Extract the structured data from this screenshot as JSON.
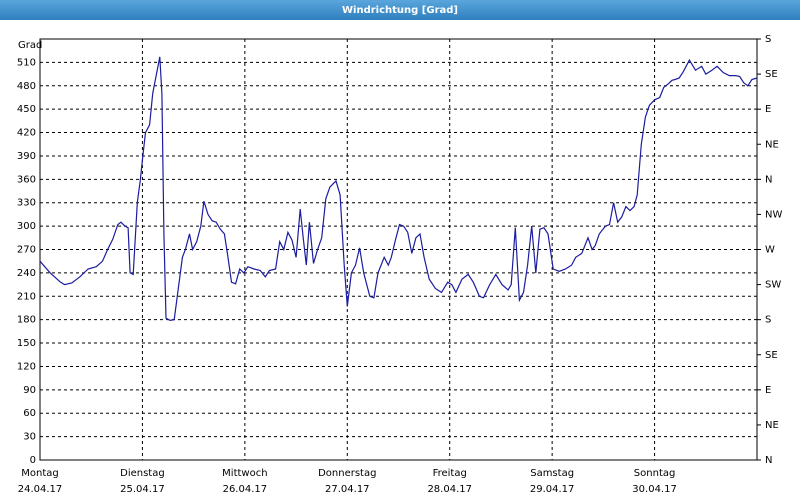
{
  "chart_data": {
    "type": "line",
    "title": "Windrichtung [Grad]",
    "y_label": "Grad",
    "grid": true,
    "xlim": [
      0,
      7
    ],
    "xticks": [
      {
        "value": 0,
        "label": "Montag"
      },
      {
        "value": 1,
        "label": "Dienstag"
      },
      {
        "value": 2,
        "label": "Mittwoch"
      },
      {
        "value": 3,
        "label": "Donnerstag"
      },
      {
        "value": 4,
        "label": "Freitag"
      },
      {
        "value": 5,
        "label": "Samstag"
      },
      {
        "value": 6,
        "label": "Sonntag"
      }
    ],
    "xtick_dates": [
      "24.04.17",
      "25.04.17",
      "26.04.17",
      "27.04.17",
      "28.04.17",
      "29.04.17",
      "30.04.17"
    ],
    "ylim": [
      0,
      540
    ],
    "yticks": [
      0,
      30,
      60,
      90,
      120,
      150,
      180,
      210,
      240,
      270,
      300,
      330,
      360,
      390,
      420,
      450,
      480,
      510
    ],
    "y2lim": [
      0,
      540
    ],
    "y2ticks": [
      {
        "value": 0,
        "label": "N"
      },
      {
        "value": 45,
        "label": "NE"
      },
      {
        "value": 90,
        "label": "E"
      },
      {
        "value": 135,
        "label": "SE"
      },
      {
        "value": 180,
        "label": "S"
      },
      {
        "value": 225,
        "label": "SW"
      },
      {
        "value": 270,
        "label": "W"
      },
      {
        "value": 315,
        "label": "NW"
      },
      {
        "value": 360,
        "label": "N"
      },
      {
        "value": 405,
        "label": "NE"
      },
      {
        "value": 450,
        "label": "E"
      },
      {
        "value": 495,
        "label": "SE"
      },
      {
        "value": 540,
        "label": "S"
      }
    ],
    "x": [
      0,
      0.1,
      0.2,
      0.24,
      0.31,
      0.39,
      0.47,
      0.55,
      0.61,
      0.66,
      0.71,
      0.76,
      0.79,
      0.83,
      0.86,
      0.88,
      0.91,
      0.95,
      0.98,
      1.0,
      1.03,
      1.07,
      1.1,
      1.13,
      1.17,
      1.19,
      1.21,
      1.23,
      1.27,
      1.31,
      1.35,
      1.39,
      1.42,
      1.46,
      1.49,
      1.53,
      1.57,
      1.6,
      1.64,
      1.68,
      1.72,
      1.76,
      1.8,
      1.83,
      1.87,
      1.91,
      1.95,
      1.99,
      2.03,
      2.09,
      2.15,
      2.2,
      2.24,
      2.3,
      2.34,
      2.38,
      2.42,
      2.46,
      2.5,
      2.54,
      2.57,
      2.6,
      2.63,
      2.67,
      2.71,
      2.75,
      2.79,
      2.83,
      2.89,
      2.93,
      2.97,
      3.0,
      3.04,
      3.08,
      3.12,
      3.16,
      3.22,
      3.26,
      3.3,
      3.36,
      3.4,
      3.43,
      3.47,
      3.51,
      3.55,
      3.59,
      3.63,
      3.67,
      3.71,
      3.75,
      3.8,
      3.86,
      3.92,
      3.98,
      4.02,
      4.06,
      4.12,
      4.18,
      4.23,
      4.29,
      4.33,
      4.39,
      4.45,
      4.51,
      4.57,
      4.6,
      4.64,
      4.68,
      4.72,
      4.76,
      4.8,
      4.84,
      4.88,
      4.92,
      4.96,
      5.01,
      5.07,
      5.13,
      5.19,
      5.23,
      5.29,
      5.35,
      5.39,
      5.42,
      5.46,
      5.52,
      5.56,
      5.6,
      5.64,
      5.68,
      5.72,
      5.76,
      5.8,
      5.83,
      5.87,
      5.91,
      5.95,
      6.0,
      6.05,
      6.09,
      6.13,
      6.17,
      6.2,
      6.24,
      6.28,
      6.34,
      6.4,
      6.46,
      6.5,
      6.56,
      6.61,
      6.67,
      6.73,
      6.79,
      6.83,
      6.87,
      6.91,
      6.95,
      7.0
    ],
    "series": [
      {
        "color": "#1c1ca0",
        "values": [
          255,
          240,
          228,
          225,
          227,
          235,
          245,
          248,
          255,
          270,
          283,
          302,
          305,
          300,
          298,
          240,
          238,
          330,
          360,
          385,
          420,
          430,
          470,
          490,
          517,
          470,
          290,
          182,
          179,
          180,
          220,
          260,
          270,
          290,
          270,
          280,
          300,
          332,
          315,
          307,
          305,
          296,
          290,
          265,
          228,
          226,
          245,
          240,
          248,
          245,
          243,
          235,
          243,
          245,
          280,
          270,
          292,
          282,
          260,
          322,
          285,
          250,
          305,
          252,
          270,
          285,
          335,
          350,
          358,
          340,
          250,
          197,
          240,
          250,
          272,
          240,
          210,
          208,
          240,
          260,
          250,
          260,
          282,
          302,
          300,
          292,
          265,
          285,
          290,
          260,
          232,
          220,
          215,
          228,
          225,
          215,
          232,
          238,
          228,
          210,
          208,
          225,
          238,
          225,
          218,
          225,
          298,
          205,
          215,
          250,
          300,
          240,
          296,
          298,
          290,
          245,
          242,
          245,
          250,
          260,
          265,
          285,
          270,
          275,
          290,
          300,
          302,
          330,
          305,
          312,
          325,
          320,
          325,
          340,
          405,
          440,
          455,
          462,
          465,
          478,
          482,
          487,
          488,
          490,
          498,
          513,
          500,
          505,
          495,
          500,
          505,
          497,
          493,
          493,
          492,
          484,
          480,
          488,
          490
        ]
      }
    ]
  }
}
